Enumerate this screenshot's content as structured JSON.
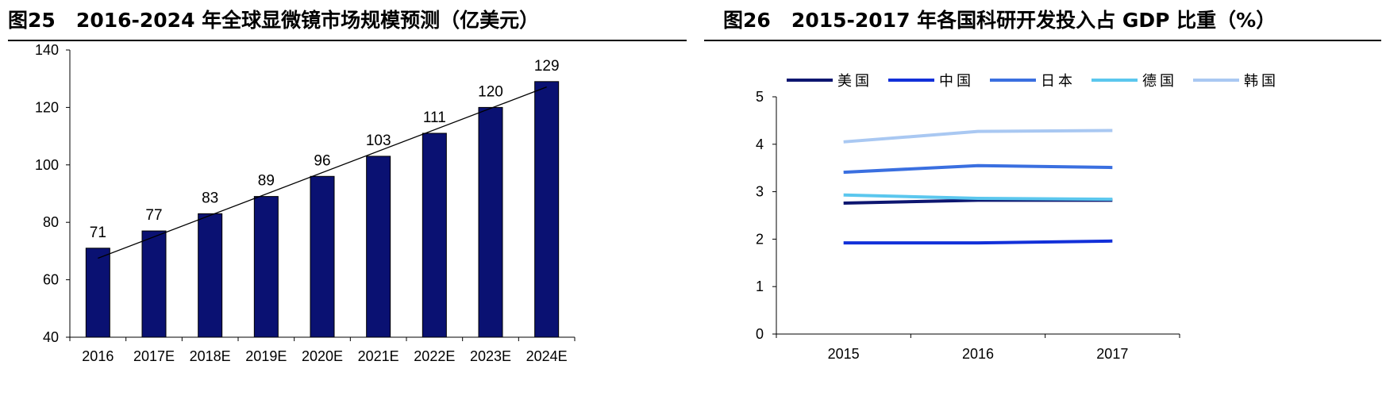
{
  "left_panel": {
    "figure_label": "图25",
    "title": "2016-2024 年全球显微镜市场规模预测（亿美元）"
  },
  "right_panel": {
    "figure_label": "图26",
    "title": "2015-2017 年各国科研开发投入占 GDP 比重（%）"
  },
  "chart_data": [
    {
      "type": "bar",
      "title": "2016-2024 年全球显微镜市场规模预测（亿美元）",
      "categories": [
        "2016",
        "2017E",
        "2018E",
        "2019E",
        "2020E",
        "2021E",
        "2022E",
        "2023E",
        "2024E"
      ],
      "values": [
        71,
        77,
        83,
        89,
        96,
        103,
        111,
        120,
        129
      ],
      "data_labels": [
        "71",
        "77",
        "83",
        "89",
        "96",
        "103",
        "111",
        "120",
        "129"
      ],
      "ylim": [
        40,
        140
      ],
      "yticks": [
        "40",
        "60",
        "80",
        "100",
        "120",
        "140"
      ],
      "trendline": true,
      "bar_color": "#0a1172",
      "grid": false
    },
    {
      "type": "line",
      "title": "2015-2017 年各国科研开发投入占 GDP 比重（%）",
      "x": [
        "2015",
        "2016",
        "2017"
      ],
      "ylim": [
        0,
        5
      ],
      "yticks": [
        "0",
        "1",
        "2",
        "3",
        "4",
        "5"
      ],
      "legend_position": "top",
      "series": [
        {
          "name": "美国",
          "values": [
            2.76,
            2.82,
            2.82
          ],
          "color": "#0d1670"
        },
        {
          "name": "中国",
          "values": [
            1.92,
            1.92,
            1.96
          ],
          "color": "#1230d9"
        },
        {
          "name": "日本",
          "values": [
            3.41,
            3.55,
            3.51
          ],
          "color": "#3a6fe0"
        },
        {
          "name": "德国",
          "values": [
            2.93,
            2.86,
            2.84
          ],
          "color": "#5bc7ee"
        },
        {
          "name": "韩国",
          "values": [
            4.05,
            4.27,
            4.29
          ],
          "color": "#a9c8f2"
        }
      ],
      "grid": false
    }
  ]
}
